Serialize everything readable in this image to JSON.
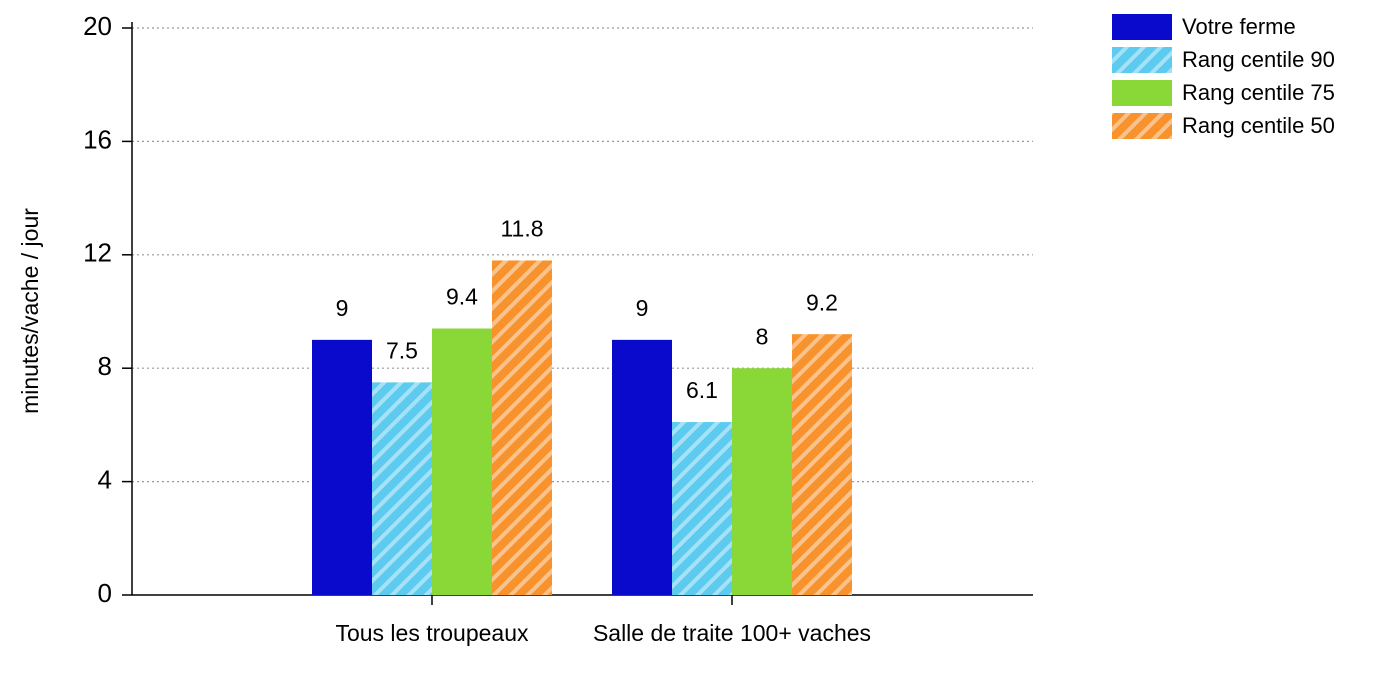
{
  "chart_data": {
    "type": "bar",
    "y_label": "minutes/vache / jour",
    "categories": [
      "Tous les troupeaux",
      "Salle de traite 100+ vaches"
    ],
    "series": [
      {
        "name": "Votre ferme",
        "color": "#0a0acd",
        "values": [
          9,
          9
        ]
      },
      {
        "name": "Rang centile 90",
        "color": "#5ccbef",
        "pattern": "hatch",
        "values": [
          7.5,
          6.1
        ]
      },
      {
        "name": "Rang centile 75",
        "color": "#8ad838",
        "values": [
          9.4,
          8
        ]
      },
      {
        "name": "Rang centile 50",
        "color": "#f7922d",
        "pattern": "hatch",
        "values": [
          11.8,
          9.2
        ]
      }
    ],
    "ylim": [
      0,
      20
    ],
    "yticks": [
      0,
      4,
      8,
      12,
      16,
      20
    ],
    "grid": true,
    "legend": "top-right"
  }
}
